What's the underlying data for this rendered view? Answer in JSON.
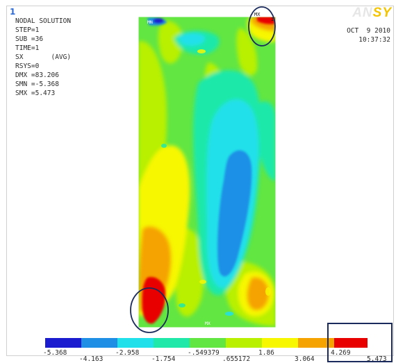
{
  "window": {
    "number": "1",
    "brand_part1": "AN",
    "brand_part2": "SY"
  },
  "info": {
    "lines": [
      "NODAL SOLUTION",
      "STEP=1",
      "SUB =36",
      "TIME=1",
      "SX       (AVG)",
      "RSYS=0",
      "DMX =83.206",
      "SMN =-5.368",
      "SMX =5.473"
    ]
  },
  "datetime": {
    "date": "OCT  9 2010",
    "time": "10:37:32"
  },
  "plot": {
    "min_marker": "MN",
    "max_marker": "MX",
    "marker_top": "MX",
    "marker_bottom": "MX"
  },
  "legend": {
    "colors": [
      "#1b1bd0",
      "#1f8fe6",
      "#21e0ea",
      "#1fe8a9",
      "#62e642",
      "#b8f000",
      "#f7f700",
      "#f5a300",
      "#e80000"
    ],
    "labels_top": [
      "-5.368",
      "-2.958",
      "-.549379",
      "1.86",
      "4.269"
    ],
    "labels_bottom": [
      "-4.163",
      "-1.754",
      ".655172",
      "3.064",
      "5.473"
    ]
  },
  "annotations": {
    "circle_color": "#1a2a5c",
    "box_color": "#1a2a5c"
  }
}
